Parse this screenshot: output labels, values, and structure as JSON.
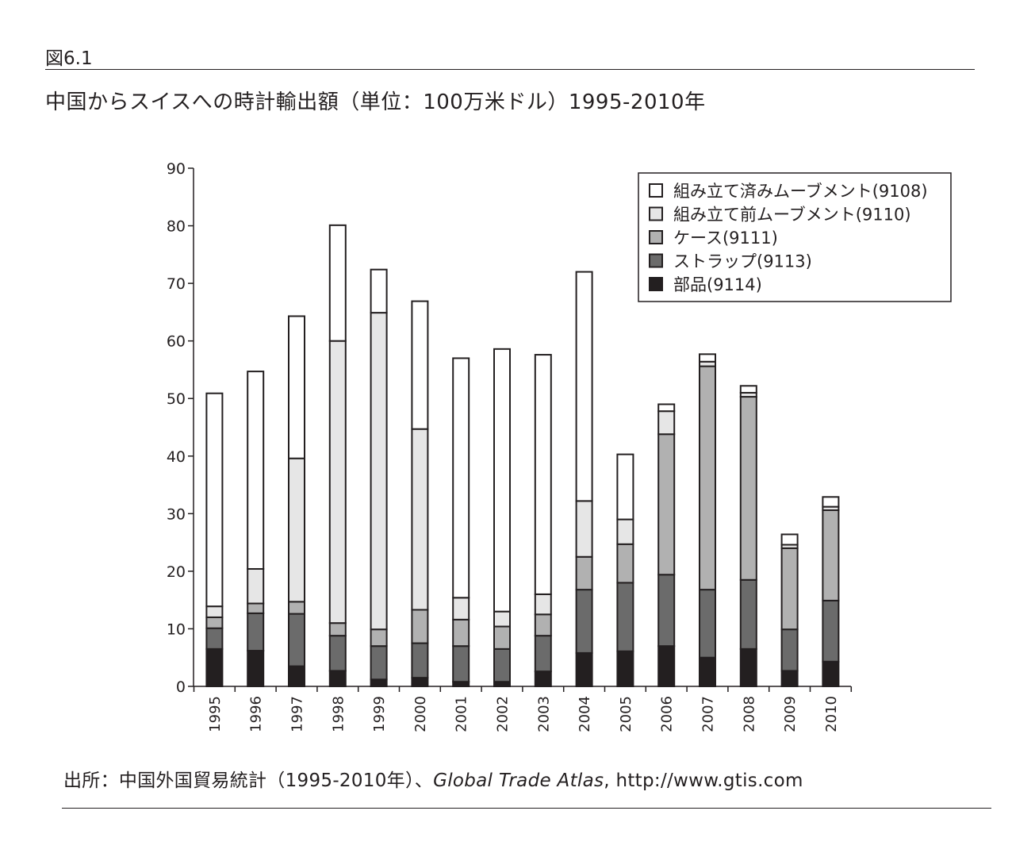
{
  "figure": {
    "label": "図6.1",
    "title": "中国からスイスへの時計輸出額（単位：100万米ドル）1995-2010年",
    "source_prefix": "出所：中国外国貿易統計（1995-2010年）、",
    "source_italic": "Global Trade Atlas",
    "source_suffix": ", http://www.gtis.com"
  },
  "colors": {
    "9108": "#ffffff",
    "9110": "#e6e6e6",
    "9111": "#b1b1b1",
    "9113": "#6b6b6b",
    "9114": "#231f20",
    "stroke": "#231f20"
  },
  "chart_data": {
    "type": "bar",
    "stacked": true,
    "categories": [
      "1995",
      "1996",
      "1997",
      "1998",
      "1999",
      "2000",
      "2001",
      "2002",
      "2003",
      "2004",
      "2005",
      "2006",
      "2007",
      "2008",
      "2009",
      "2010"
    ],
    "series": [
      {
        "name": "部品(9114)",
        "key": "9114",
        "values": [
          6.5,
          6.2,
          3.5,
          2.7,
          1.2,
          1.5,
          0.8,
          0.8,
          2.6,
          5.8,
          6.1,
          7.0,
          5.0,
          6.5,
          2.7,
          4.3
        ]
      },
      {
        "name": "ストラップ(9113)",
        "key": "9113",
        "values": [
          3.6,
          6.5,
          9.1,
          6.1,
          5.8,
          6.0,
          6.2,
          5.7,
          6.2,
          11.0,
          11.9,
          12.4,
          11.8,
          12.0,
          7.2,
          10.6
        ]
      },
      {
        "name": "ケース(9111)",
        "key": "9111",
        "values": [
          1.9,
          1.7,
          2.1,
          2.2,
          2.9,
          5.8,
          4.6,
          3.9,
          3.7,
          5.7,
          6.7,
          24.4,
          38.8,
          31.8,
          14.1,
          15.7
        ]
      },
      {
        "name": "組み立て前ムーブメント(9110)",
        "key": "9110",
        "values": [
          1.9,
          6.0,
          24.9,
          49.0,
          55.0,
          31.4,
          3.8,
          2.6,
          3.5,
          9.7,
          4.3,
          4.0,
          0.8,
          0.7,
          0.6,
          0.6
        ]
      },
      {
        "name": "組み立て済みムーブメント(9108)",
        "key": "9108",
        "values": [
          37.0,
          34.3,
          24.7,
          20.1,
          7.5,
          22.2,
          41.6,
          45.6,
          41.6,
          39.8,
          11.3,
          1.2,
          1.3,
          1.2,
          1.8,
          1.7
        ]
      }
    ],
    "legend_order": [
      "9108",
      "9110",
      "9111",
      "9113",
      "9114"
    ],
    "xlabel": "",
    "ylabel": "",
    "ylim": [
      0,
      90
    ],
    "yticks": [
      0,
      10,
      20,
      30,
      40,
      50,
      60,
      70,
      80,
      90
    ],
    "legend_position": "top-right",
    "grid": false
  }
}
